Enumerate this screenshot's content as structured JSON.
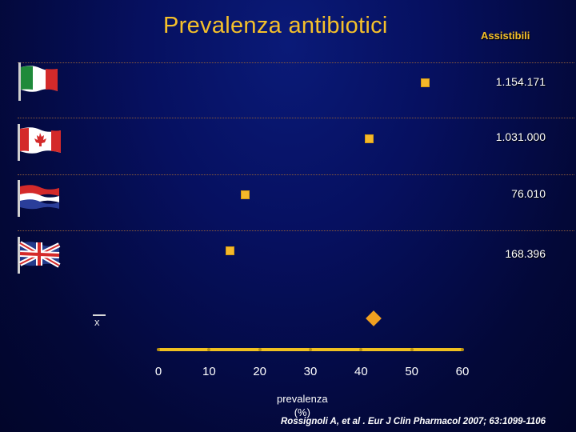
{
  "chart_data": {
    "type": "scatter",
    "title": "Prevalenza antibiotici",
    "legend_header": "Assistibili",
    "xlabel": "prevalenza (%)",
    "xlabel_lines": [
      "prevalenza",
      "(%)"
    ],
    "xlim": [
      0,
      60
    ],
    "x_ticks": [
      "0",
      "10",
      "20",
      "30",
      "40",
      "50",
      "60"
    ],
    "series": [
      {
        "flag": "italy-flag",
        "x": 52.5,
        "assistibili": "1.154.171"
      },
      {
        "flag": "canada-flag",
        "x": 41.5,
        "assistibili": "1.031.000"
      },
      {
        "flag": "netherlands-flag",
        "x": 17.0,
        "assistibili": "76.010"
      },
      {
        "flag": "uk-flag",
        "x": 14.0,
        "assistibili": "168.396"
      }
    ],
    "mean": {
      "symbol": "x",
      "x": 42.5
    }
  },
  "citation": "Rossignoli A,  et al . Eur J Clin Pharmacol  2007; 63:1099-1106",
  "colors": {
    "accent": "#f5c02a",
    "background": "#061060"
  }
}
